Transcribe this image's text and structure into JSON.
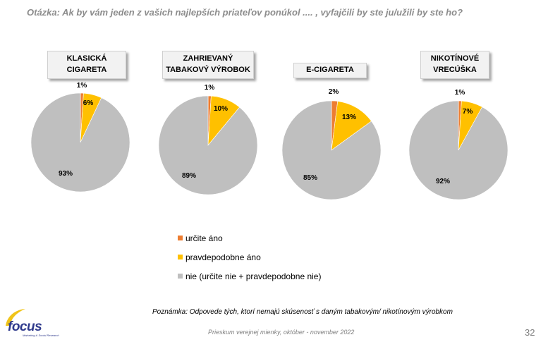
{
  "question": "Otázka: Ak by vám jeden z vašich najlepších priateľov ponúkol .... , vyfajčili by ste ju/užili by ste ho?",
  "colors": {
    "urcite_ano": "#ED7D31",
    "pravdepodobne_ano": "#FFC000",
    "nie": "#BFBFBF"
  },
  "chart_data": {
    "type": "pie",
    "series_names": [
      "určite áno",
      "pravdepodobne áno",
      "nie (určite nie + pravdepodobne nie)"
    ],
    "pies": [
      {
        "title_line1": "KLASICKÁ",
        "title_line2": "CIGARETA",
        "values": [
          1,
          6,
          93
        ],
        "labels": [
          "1%",
          "6%",
          "93%"
        ]
      },
      {
        "title_line1": "ZAHRIEVANÝ",
        "title_line2": "TABAKOVÝ VÝROBOK",
        "values": [
          1,
          10,
          89
        ],
        "labels": [
          "1%",
          "10%",
          "89%"
        ]
      },
      {
        "title_line1": "E-CIGARETA",
        "title_line2": "",
        "values": [
          2,
          13,
          85
        ],
        "labels": [
          "2%",
          "13%",
          "85%"
        ]
      },
      {
        "title_line1": "NIKOTÍNOVÉ",
        "title_line2": "VRECÚŠKA",
        "values": [
          1,
          7,
          92
        ],
        "labels": [
          "1%",
          "7%",
          "92%"
        ]
      }
    ]
  },
  "legend": [
    {
      "label": "určite áno",
      "color": "#ED7D31"
    },
    {
      "label": "pravdepodobne áno",
      "color": "#FFC000"
    },
    {
      "label": "nie (určite nie + pravdepodobne nie)",
      "color": "#BFBFBF"
    }
  ],
  "note": "Poznámka: Odpovede tých, ktorí nemajú skúsenosť s daným tabakovým/ nikotínovým výrobkom",
  "footer": "Prieskum verejnej mienky, október - november 2022",
  "page_number": "32",
  "logo": {
    "word": "focus",
    "sub": "Marketing & Social Research"
  }
}
